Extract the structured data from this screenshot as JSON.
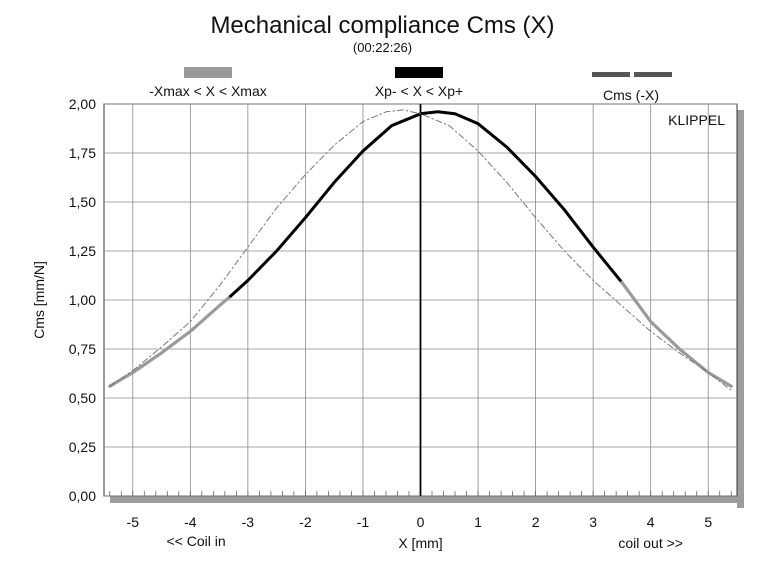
{
  "chart_data": {
    "type": "line",
    "title": "Mechanical compliance Cms (X)",
    "subtitle": "(00:22:26)",
    "xlabel": "X [mm]",
    "ylabel": "Cms [mm/N]",
    "xlim": [
      -5.5,
      5.5
    ],
    "ylim": [
      0,
      2
    ],
    "x_ticks": [
      -5,
      -4,
      -3,
      -2,
      -1,
      0,
      1,
      2,
      3,
      4,
      5
    ],
    "y_ticks": [
      "0,00",
      "0,25",
      "0,50",
      "0,75",
      "1,00",
      "1,25",
      "1,50",
      "1,75",
      "2,00"
    ],
    "annotations": {
      "left": "<< Coil in",
      "right": "coil out >>",
      "brand": "KLIPPEL"
    },
    "grid": true,
    "legend_placement": "top",
    "series": [
      {
        "name": "-Xmax < X < Xmax",
        "color": "#9a9a9a",
        "style": "solid",
        "x": [
          -5.4,
          -5.0,
          -4.5,
          -4.0,
          -3.5,
          -3.3
        ],
        "y": [
          0.56,
          0.63,
          0.73,
          0.84,
          0.97,
          1.02
        ]
      },
      {
        "name": "Xp- < X < Xp+",
        "color": "#000000",
        "style": "solid",
        "x": [
          -3.3,
          -3.0,
          -2.5,
          -2.0,
          -1.5,
          -1.0,
          -0.5,
          0.0,
          0.3,
          0.6,
          1.0,
          1.5,
          2.0,
          2.5,
          3.0,
          3.5
        ],
        "y": [
          1.02,
          1.1,
          1.25,
          1.42,
          1.6,
          1.76,
          1.89,
          1.95,
          1.96,
          1.95,
          1.9,
          1.78,
          1.63,
          1.46,
          1.27,
          1.09
        ]
      },
      {
        "name": "-Xmax < X < Xmax",
        "color": "#9a9a9a",
        "style": "solid",
        "x": [
          3.5,
          4.0,
          4.5,
          5.0,
          5.4
        ],
        "y": [
          1.09,
          0.89,
          0.75,
          0.63,
          0.56
        ]
      },
      {
        "name": "Cms (-X)",
        "color": "#777777",
        "style": "dashdot",
        "x": [
          -5.4,
          -5.0,
          -4.5,
          -4.0,
          -3.5,
          -3.0,
          -2.5,
          -2.0,
          -1.5,
          -1.0,
          -0.6,
          -0.3,
          0.0,
          0.5,
          1.0,
          1.5,
          2.0,
          2.5,
          3.0,
          3.5,
          4.0,
          4.5,
          5.0,
          5.4
        ],
        "y": [
          0.56,
          0.64,
          0.76,
          0.89,
          1.07,
          1.27,
          1.47,
          1.64,
          1.79,
          1.91,
          1.96,
          1.97,
          1.95,
          1.89,
          1.76,
          1.6,
          1.42,
          1.25,
          1.1,
          0.97,
          0.84,
          0.73,
          0.63,
          0.54
        ]
      }
    ],
    "legend": [
      {
        "label": "-Xmax < X < Xmax",
        "color": "#9a9a9a",
        "swatch": "bar"
      },
      {
        "label": "Xp- < X < Xp+",
        "color": "#000000",
        "swatch": "bar"
      },
      {
        "label": "Cms (-X)",
        "color": "#555555",
        "swatch": "dash"
      }
    ]
  }
}
